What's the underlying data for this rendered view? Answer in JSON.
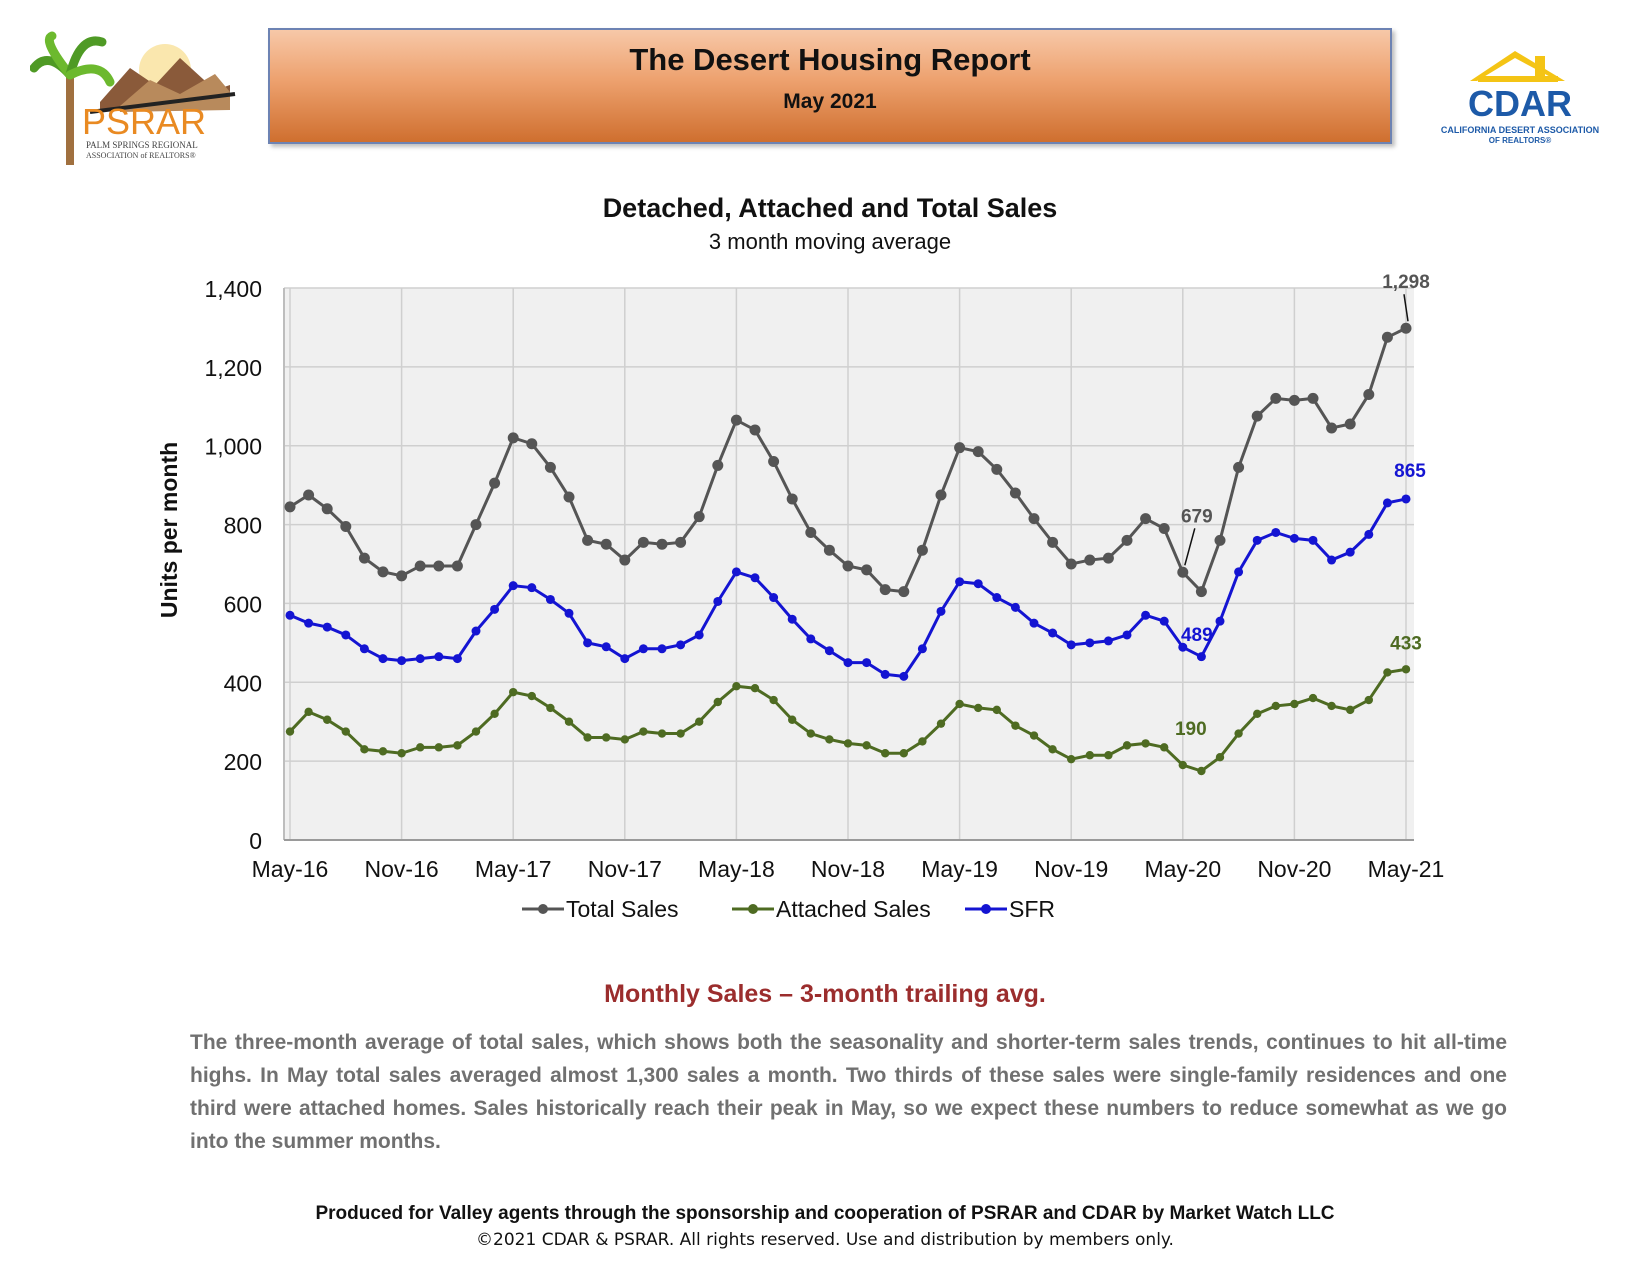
{
  "header": {
    "title": "The Desert Housing Report",
    "subtitle": "May 2021"
  },
  "logos": {
    "left": {
      "name": "PSRAR",
      "line1": "PALM SPRINGS REGIONAL",
      "line2": "ASSOCIATION of REALTORS®"
    },
    "right": {
      "name": "CDAR",
      "line1": "CALIFORNIA DESERT ASSOCIATION",
      "line2": "OF REALTORS®"
    }
  },
  "colors": {
    "total": "#555555",
    "attached": "#4e6b22",
    "sfr": "#1414d2",
    "heading": "#9b2d2d"
  },
  "chart_data": {
    "type": "line",
    "title": "Detached, Attached and Total Sales",
    "subtitle": "3 month moving average",
    "ylabel": "Units per month",
    "xlabel": "",
    "ylim": [
      0,
      1400
    ],
    "yticks": [
      0,
      200,
      400,
      600,
      800,
      1000,
      1200,
      1400
    ],
    "ytick_labels": [
      "0",
      "200",
      "400",
      "600",
      "800",
      "1,000",
      "1,200",
      "1,400"
    ],
    "xtick_labels": [
      "May-16",
      "Nov-16",
      "May-17",
      "Nov-17",
      "May-18",
      "Nov-18",
      "May-19",
      "Nov-19",
      "May-20",
      "Nov-20",
      "May-21"
    ],
    "grid": true,
    "legend_position": "bottom",
    "series": [
      {
        "name": "Total Sales",
        "color": "#555555",
        "values": [
          845,
          875,
          840,
          795,
          715,
          680,
          670,
          695,
          695,
          695,
          800,
          905,
          1020,
          1005,
          945,
          870,
          760,
          750,
          710,
          755,
          750,
          755,
          820,
          950,
          1065,
          1040,
          960,
          865,
          780,
          735,
          695,
          685,
          635,
          630,
          735,
          875,
          995,
          985,
          940,
          880,
          815,
          755,
          700,
          710,
          715,
          760,
          815,
          790,
          679,
          630,
          760,
          945,
          1075,
          1120,
          1115,
          1120,
          1045,
          1055,
          1130,
          1275,
          1298
        ]
      },
      {
        "name": "Attached Sales",
        "color": "#4e6b22",
        "values": [
          275,
          325,
          305,
          275,
          230,
          225,
          220,
          235,
          235,
          240,
          275,
          320,
          375,
          365,
          335,
          300,
          260,
          260,
          255,
          275,
          270,
          270,
          300,
          350,
          390,
          385,
          355,
          305,
          270,
          255,
          245,
          240,
          220,
          220,
          250,
          295,
          345,
          335,
          330,
          290,
          265,
          230,
          205,
          215,
          215,
          240,
          245,
          235,
          190,
          175,
          210,
          270,
          320,
          340,
          345,
          360,
          340,
          330,
          355,
          425,
          433
        ]
      },
      {
        "name": "SFR",
        "color": "#1414d2",
        "values": [
          570,
          550,
          540,
          520,
          485,
          460,
          455,
          460,
          465,
          460,
          530,
          585,
          645,
          640,
          610,
          575,
          500,
          490,
          460,
          485,
          485,
          495,
          520,
          605,
          680,
          665,
          615,
          560,
          510,
          480,
          450,
          450,
          420,
          415,
          485,
          580,
          655,
          650,
          615,
          590,
          550,
          525,
          495,
          500,
          505,
          520,
          570,
          555,
          489,
          465,
          555,
          680,
          760,
          780,
          765,
          760,
          710,
          730,
          775,
          855,
          865
        ]
      }
    ],
    "annotations": [
      {
        "series": "Total Sales",
        "x_label": "May-20",
        "text": "679"
      },
      {
        "series": "SFR",
        "x_label": "May-20",
        "text": "489"
      },
      {
        "series": "Attached Sales",
        "x_label": "May-20",
        "text": "190"
      },
      {
        "series": "Total Sales",
        "x_label": "May-21",
        "text": "1,298"
      },
      {
        "series": "SFR",
        "x_label": "May-21",
        "text": "865"
      },
      {
        "series": "Attached Sales",
        "x_label": "May-21",
        "text": "433"
      }
    ]
  },
  "section": {
    "heading": "Monthly Sales – 3-month trailing avg.",
    "body": "The three-month average of total sales, which shows both the seasonality and shorter-term sales trends, continues to hit all-time highs. In May total sales averaged almost 1,300 sales a month. Two thirds of these sales were single-family residences and one third were attached homes. Sales historically reach their peak in May, so we expect these numbers to reduce somewhat as we go into the summer months."
  },
  "footer": {
    "line1": "Produced for Valley agents through the sponsorship and cooperation of PSRAR and CDAR  by Market Watch LLC",
    "line2": "©2021 CDAR & PSRAR.  All rights reserved.  Use and distribution by members only."
  }
}
